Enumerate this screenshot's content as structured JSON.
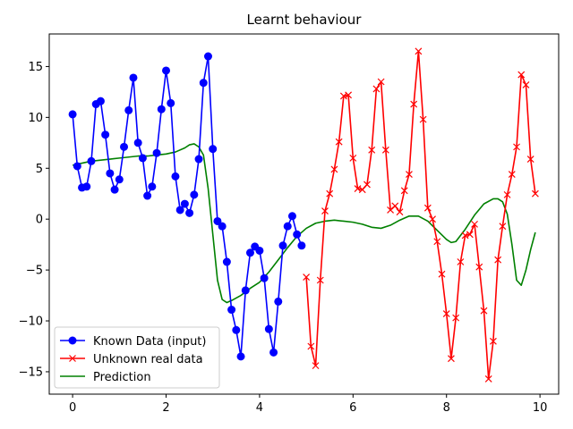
{
  "chart_data": {
    "type": "line",
    "title": "Learnt behaviour",
    "xlabel": "",
    "ylabel": "",
    "xlim": [
      -0.5,
      10.4
    ],
    "ylim": [
      -17.2,
      18.2
    ],
    "x_ticks": [
      0,
      2,
      4,
      6,
      8,
      10
    ],
    "y_ticks": [
      -15,
      -10,
      -5,
      0,
      5,
      10,
      15
    ],
    "grid": false,
    "legend_position": "lower-left",
    "series": [
      {
        "name": "Known Data (input)",
        "color": "#0000ff",
        "marker": "circle",
        "x": [
          0.0,
          0.1,
          0.2,
          0.3,
          0.4,
          0.5,
          0.6,
          0.7,
          0.8,
          0.9,
          1.0,
          1.1,
          1.2,
          1.3,
          1.4,
          1.5,
          1.6,
          1.7,
          1.8,
          1.9,
          2.0,
          2.1,
          2.2,
          2.3,
          2.4,
          2.5,
          2.6,
          2.7,
          2.8,
          2.9,
          3.0,
          3.1,
          3.2,
          3.3,
          3.4,
          3.5,
          3.6,
          3.7,
          3.8,
          3.9,
          4.0,
          4.1,
          4.2,
          4.3,
          4.4,
          4.5,
          4.6,
          4.7,
          4.8,
          4.9
        ],
        "values": [
          10.3,
          5.2,
          3.1,
          3.2,
          5.7,
          11.3,
          11.6,
          8.3,
          4.5,
          2.9,
          3.9,
          7.1,
          10.7,
          13.9,
          7.5,
          6.0,
          2.3,
          3.2,
          6.5,
          10.8,
          14.6,
          11.4,
          4.2,
          0.9,
          1.5,
          0.6,
          2.4,
          5.9,
          13.4,
          16.0,
          6.9,
          -0.2,
          -0.7,
          -4.2,
          -8.9,
          -10.9,
          -13.5,
          -7.0,
          -3.3,
          -2.7,
          -3.1,
          -5.8,
          -10.8,
          -13.1,
          -8.1,
          -2.6,
          -0.7,
          0.3,
          -1.5,
          -2.6
        ]
      },
      {
        "name": "Unknown real data",
        "color": "#ff0000",
        "marker": "x",
        "x": [
          5.0,
          5.1,
          5.2,
          5.3,
          5.4,
          5.5,
          5.6,
          5.7,
          5.8,
          5.9,
          6.0,
          6.1,
          6.2,
          6.3,
          6.4,
          6.5,
          6.6,
          6.7,
          6.8,
          6.9,
          7.0,
          7.1,
          7.2,
          7.3,
          7.4,
          7.5,
          7.6,
          7.7,
          7.8,
          7.9,
          8.0,
          8.1,
          8.2,
          8.3,
          8.4,
          8.5,
          8.6,
          8.7,
          8.8,
          8.9,
          9.0,
          9.1,
          9.2,
          9.3,
          9.4,
          9.5,
          9.6,
          9.7,
          9.8,
          9.9
        ],
        "values": [
          -5.7,
          -12.5,
          -14.4,
          -6.0,
          0.8,
          2.5,
          4.9,
          7.6,
          12.1,
          12.2,
          6.0,
          3.0,
          2.9,
          3.4,
          6.8,
          12.8,
          13.5,
          6.8,
          0.9,
          1.3,
          0.7,
          2.8,
          4.4,
          11.3,
          16.5,
          9.8,
          1.1,
          0.0,
          -2.2,
          -5.4,
          -9.3,
          -13.7,
          -9.7,
          -4.2,
          -1.6,
          -1.5,
          -0.5,
          -4.7,
          -9.0,
          -15.7,
          -12.0,
          -4.0,
          -0.7,
          2.4,
          4.4,
          7.1,
          14.2,
          13.2,
          5.9,
          2.5
        ]
      },
      {
        "name": "Prediction",
        "color": "#008000",
        "marker": "none",
        "x": [
          0.0,
          0.2,
          0.4,
          0.6,
          0.8,
          1.0,
          1.2,
          1.4,
          1.6,
          1.8,
          2.0,
          2.2,
          2.4,
          2.5,
          2.6,
          2.7,
          2.8,
          2.9,
          3.0,
          3.1,
          3.2,
          3.3,
          3.4,
          3.6,
          3.8,
          4.0,
          4.2,
          4.4,
          4.6,
          4.8,
          5.0,
          5.2,
          5.4,
          5.6,
          5.8,
          6.0,
          6.2,
          6.4,
          6.6,
          6.8,
          7.0,
          7.2,
          7.4,
          7.6,
          7.8,
          8.0,
          8.1,
          8.2,
          8.4,
          8.6,
          8.8,
          9.0,
          9.1,
          9.2,
          9.3,
          9.4,
          9.5,
          9.6,
          9.7,
          9.8,
          9.9
        ],
        "values": [
          5.3,
          5.5,
          5.7,
          5.8,
          5.9,
          6.0,
          6.1,
          6.2,
          6.2,
          6.3,
          6.4,
          6.6,
          7.0,
          7.3,
          7.4,
          7.1,
          6.3,
          3.0,
          -1.5,
          -6.0,
          -7.9,
          -8.2,
          -8.0,
          -7.5,
          -6.8,
          -6.2,
          -5.2,
          -4.0,
          -2.8,
          -1.7,
          -0.9,
          -0.4,
          -0.2,
          -0.1,
          -0.2,
          -0.3,
          -0.5,
          -0.8,
          -0.9,
          -0.6,
          -0.1,
          0.3,
          0.3,
          -0.2,
          -1.1,
          -2.0,
          -2.3,
          -2.2,
          -1.0,
          0.4,
          1.5,
          2.0,
          2.0,
          1.7,
          0.5,
          -2.5,
          -6.0,
          -6.5,
          -5.0,
          -3.0,
          -1.3
        ]
      }
    ]
  }
}
